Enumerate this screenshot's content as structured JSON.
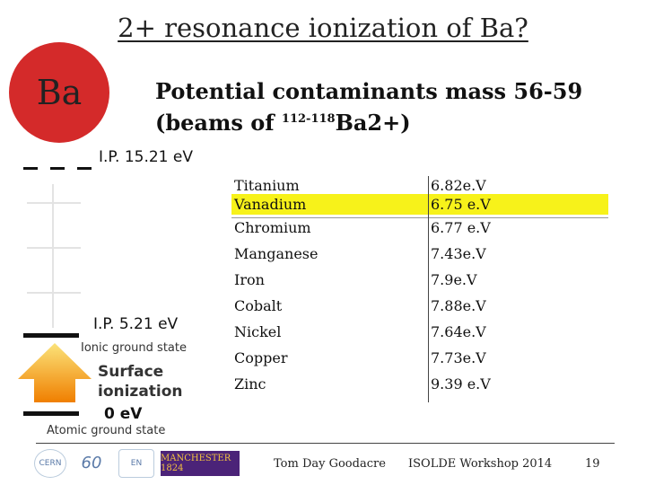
{
  "slide": {
    "title": "2+ resonance ionization of Ba?",
    "element_symbol": "Ba",
    "subtitle_line1": "Potential contaminants mass 56-59",
    "subtitle_prefix": "(beams of ",
    "subtitle_sup": "112-118",
    "subtitle_suffix": "Ba2+)"
  },
  "diagram": {
    "ip2_label": "I.P. 15.21 eV",
    "ip1_label": "I.P. 5.21 eV",
    "ionic_label": "Ionic ground state",
    "surface_label_1": "Surface",
    "surface_label_2": "ionization",
    "zero_label": "0 eV",
    "atomic_label": "Atomic ground state"
  },
  "contaminants": [
    {
      "element": "Titanium",
      "energy": "6.82e.V",
      "highlight": false
    },
    {
      "element": "Vanadium",
      "energy": "6.75 e.V",
      "highlight": true
    },
    {
      "element": "Chromium",
      "energy": "6.77 e.V",
      "highlight": false
    },
    {
      "element": "Manganese",
      "energy": "7.43e.V",
      "highlight": false
    },
    {
      "element": "Iron",
      "energy": "7.9e.V",
      "highlight": false
    },
    {
      "element": "Cobalt",
      "energy": "7.88e.V",
      "highlight": false
    },
    {
      "element": "Nickel",
      "energy": "7.64e.V",
      "highlight": false
    },
    {
      "element": "Copper",
      "energy": "7.73e.V",
      "highlight": false
    },
    {
      "element": "Zinc",
      "energy": "9.39 e.V",
      "highlight": false
    }
  ],
  "footer": {
    "author": "Tom Day Goodacre",
    "event": "ISOLDE Workshop 2014",
    "page": "19",
    "logo_manchester": "MANCHESTER 1824",
    "logo_en": "EN",
    "logo_cern": "CERN",
    "logo_60": "60"
  },
  "colors": {
    "ba_circle": "#d42a2a",
    "highlight": "#f7f21a",
    "arrow_top": "#fbe37a",
    "arrow_bottom": "#f07f00"
  }
}
